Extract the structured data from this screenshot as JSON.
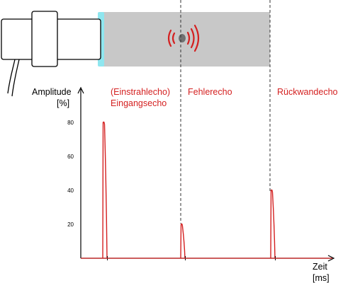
{
  "echo_labels": {
    "entry_line1": "(Einstrahlecho)",
    "entry_line2": "Eingangsecho",
    "defect": "Fehlerecho",
    "backwall": "Rückwandecho"
  },
  "colors": {
    "echo_red": "#d42020",
    "specimen_gray": "#c8c8c8",
    "couplant_cyan": "#8fe6ef",
    "defect_dark": "#707070",
    "axis_black": "#000000"
  },
  "chart_data": {
    "type": "line",
    "xlabel": "Zeit",
    "xunit": "[ms]",
    "ylabel": "Amplitude",
    "yunit": "[%]",
    "yticks": [
      20,
      40,
      60,
      80
    ],
    "ylim": [
      0,
      100
    ],
    "grid": false,
    "series": [
      {
        "name": "Eingangsecho",
        "peak": 80
      },
      {
        "name": "Fehlerecho",
        "peak": 20
      },
      {
        "name": "Rückwandecho",
        "peak": 40
      }
    ]
  },
  "icons": {
    "probe": "ultrasonic-probe-icon",
    "defect": "defect-icon",
    "waves": "sound-wave-icon"
  }
}
